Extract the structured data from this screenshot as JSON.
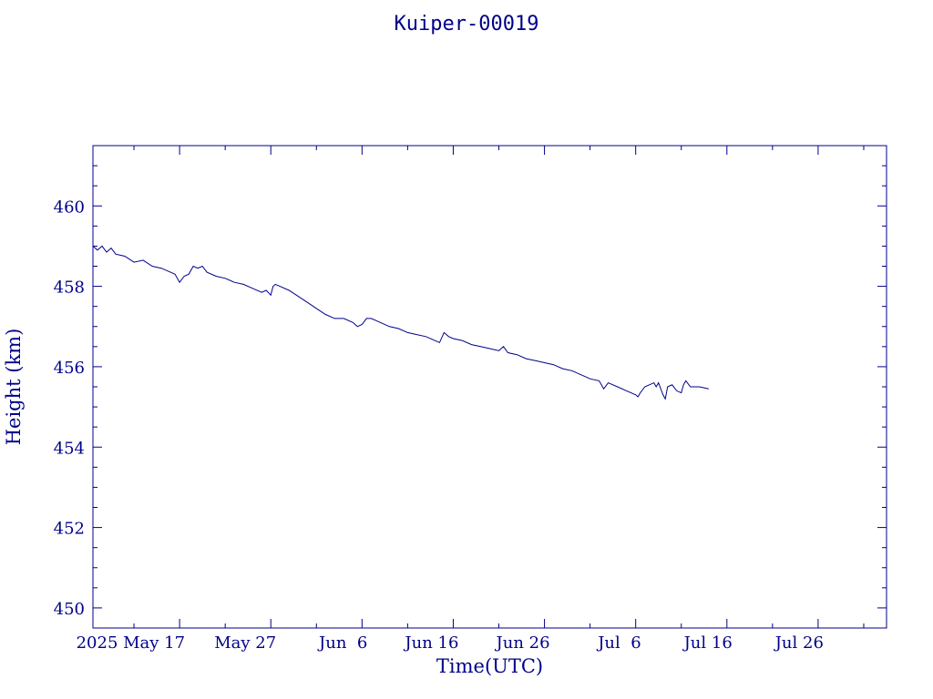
{
  "chart_data": {
    "type": "line",
    "title": "Kuiper-00019",
    "xlabel": "Time(UTC)",
    "ylabel": "Height (km)",
    "xlim": [
      "2025-05-07T12:00",
      "2025-08-02T12:00"
    ],
    "ylim": [
      449.5,
      461.5
    ],
    "grid": false,
    "colors": {
      "axes": "#00008b",
      "line": "#00008b",
      "background": "#ffffff"
    },
    "x_ticks": [
      {
        "label": "2025 May 17",
        "date": "2025-05-17"
      },
      {
        "label": "May 27",
        "date": "2025-05-27"
      },
      {
        "label": "Jun  6",
        "date": "2025-06-06"
      },
      {
        "label": "Jun 16",
        "date": "2025-06-16"
      },
      {
        "label": "Jun 26",
        "date": "2025-06-26"
      },
      {
        "label": "Jul  6",
        "date": "2025-07-06"
      },
      {
        "label": "Jul 16",
        "date": "2025-07-16"
      },
      {
        "label": "Jul 26",
        "date": "2025-07-26"
      }
    ],
    "y_ticks": [
      450,
      452,
      454,
      456,
      458,
      460
    ],
    "series": [
      {
        "x": [
          "2025-05-07T12:00",
          "2025-05-08T00:00",
          "2025-05-08T12:00",
          "2025-05-09T00:00",
          "2025-05-09T12:00",
          "2025-05-10T00:00",
          "2025-05-11T00:00",
          "2025-05-12T00:00",
          "2025-05-13T00:00",
          "2025-05-14T00:00",
          "2025-05-15T00:00",
          "2025-05-16T00:00",
          "2025-05-16T12:00",
          "2025-05-17T00:00",
          "2025-05-17T12:00",
          "2025-05-18T00:00",
          "2025-05-18T12:00",
          "2025-05-19T00:00",
          "2025-05-19T12:00",
          "2025-05-20T00:00",
          "2025-05-21T00:00",
          "2025-05-22T00:00",
          "2025-05-23T00:00",
          "2025-05-24T00:00",
          "2025-05-25T00:00",
          "2025-05-26T00:00",
          "2025-05-26T12:00",
          "2025-05-27T00:00",
          "2025-05-27T06:00",
          "2025-05-27T12:00",
          "2025-05-28T00:00",
          "2025-05-29T00:00",
          "2025-05-30T00:00",
          "2025-05-31T00:00",
          "2025-06-01T00:00",
          "2025-06-02T00:00",
          "2025-06-03T00:00",
          "2025-06-04T00:00",
          "2025-06-05T00:00",
          "2025-06-05T12:00",
          "2025-06-06T00:00",
          "2025-06-06T12:00",
          "2025-06-07T00:00",
          "2025-06-07T12:00",
          "2025-06-08T00:00",
          "2025-06-09T00:00",
          "2025-06-10T00:00",
          "2025-06-11T00:00",
          "2025-06-12T00:00",
          "2025-06-13T00:00",
          "2025-06-14T00:00",
          "2025-06-14T12:00",
          "2025-06-15T00:00",
          "2025-06-15T12:00",
          "2025-06-16T00:00",
          "2025-06-17T00:00",
          "2025-06-18T00:00",
          "2025-06-19T00:00",
          "2025-06-20T00:00",
          "2025-06-21T00:00",
          "2025-06-21T12:00",
          "2025-06-22T00:00",
          "2025-06-23T00:00",
          "2025-06-24T00:00",
          "2025-06-25T00:00",
          "2025-06-26T00:00",
          "2025-06-27T00:00",
          "2025-06-28T00:00",
          "2025-06-29T00:00",
          "2025-06-30T00:00",
          "2025-07-01T00:00",
          "2025-07-02T00:00",
          "2025-07-02T12:00",
          "2025-07-03T00:00",
          "2025-07-04T00:00",
          "2025-07-05T00:00",
          "2025-07-06T00:00",
          "2025-07-06T06:00",
          "2025-07-06T12:00",
          "2025-07-07T00:00",
          "2025-07-07T12:00",
          "2025-07-08T00:00",
          "2025-07-08T06:00",
          "2025-07-08T12:00",
          "2025-07-09T00:00",
          "2025-07-09T06:00",
          "2025-07-09T12:00",
          "2025-07-10T00:00",
          "2025-07-10T12:00",
          "2025-07-11T00:00",
          "2025-07-11T06:00",
          "2025-07-11T12:00",
          "2025-07-12T00:00",
          "2025-07-13T00:00",
          "2025-07-14T00:00"
        ],
        "y": [
          459.0,
          458.9,
          459.0,
          458.85,
          458.95,
          458.8,
          458.75,
          458.6,
          458.65,
          458.5,
          458.45,
          458.35,
          458.3,
          458.1,
          458.25,
          458.3,
          458.5,
          458.45,
          458.5,
          458.35,
          458.25,
          458.2,
          458.1,
          458.05,
          457.95,
          457.85,
          457.9,
          457.78,
          458.0,
          458.05,
          458.0,
          457.9,
          457.75,
          457.6,
          457.45,
          457.3,
          457.2,
          457.2,
          457.1,
          457.0,
          457.05,
          457.2,
          457.2,
          457.15,
          457.1,
          457.0,
          456.95,
          456.85,
          456.8,
          456.75,
          456.65,
          456.6,
          456.85,
          456.75,
          456.7,
          456.65,
          456.55,
          456.5,
          456.45,
          456.4,
          456.5,
          456.35,
          456.3,
          456.2,
          456.15,
          456.1,
          456.05,
          455.95,
          455.9,
          455.8,
          455.7,
          455.65,
          455.45,
          455.6,
          455.5,
          455.4,
          455.3,
          455.25,
          455.35,
          455.5,
          455.55,
          455.6,
          455.5,
          455.6,
          455.3,
          455.2,
          455.5,
          455.55,
          455.4,
          455.35,
          455.55,
          455.65,
          455.5,
          455.5,
          455.45
        ]
      }
    ]
  }
}
